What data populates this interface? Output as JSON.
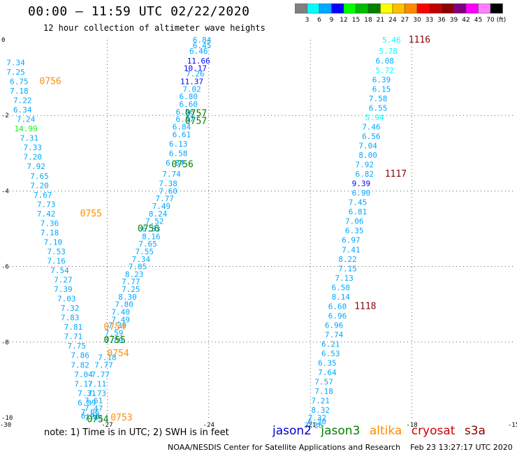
{
  "chart_data": {
    "type": "scatter",
    "title": "00:00 – 11:59 UTC 02/22/2020",
    "subtitle": "12 hour collection of altimeter wave heights",
    "xlim": [
      -30,
      -15
    ],
    "ylim": [
      -10,
      0
    ],
    "x_ticks": [
      -30,
      -27,
      -24,
      -21,
      -18,
      -15
    ],
    "y_ticks": [
      0,
      -2,
      -4,
      -6,
      -8,
      -10
    ],
    "grid": true,
    "colorbar": {
      "unit": "(ft)",
      "ticks": [
        "3",
        "6",
        "9",
        "12",
        "15",
        "18",
        "21",
        "24",
        "27",
        "30",
        "33",
        "36",
        "39",
        "42",
        "45",
        "70"
      ],
      "colors": [
        "#808080",
        "#00ffff",
        "#00a8ff",
        "#0000ff",
        "#00ff00",
        "#00bb00",
        "#008000",
        "#ffff00",
        "#ffbf00",
        "#ff8c00",
        "#ff0000",
        "#c00000",
        "#8b0000",
        "#800080",
        "#ff00ff",
        "#ff80ff",
        "#000000"
      ]
    },
    "tracks": [
      {
        "name": "west-track",
        "values": [
          {
            "x": -29.7,
            "y": -0.6,
            "v": 7.34
          },
          {
            "x": -29.7,
            "y": -0.85,
            "v": 7.25
          },
          {
            "x": -29.6,
            "y": -1.1,
            "v": 6.75
          },
          {
            "x": -29.6,
            "y": -1.35,
            "v": 7.18
          },
          {
            "x": -29.5,
            "y": -1.6,
            "v": 7.22
          },
          {
            "x": -29.5,
            "y": -1.85,
            "v": 6.34
          },
          {
            "x": -29.4,
            "y": -2.1,
            "v": 7.24
          },
          {
            "x": -29.4,
            "y": -2.35,
            "v": 14.99
          },
          {
            "x": -29.3,
            "y": -2.6,
            "v": 7.31
          },
          {
            "x": -29.2,
            "y": -2.85,
            "v": 7.33
          },
          {
            "x": -29.2,
            "y": -3.1,
            "v": 7.2
          },
          {
            "x": -29.1,
            "y": -3.35,
            "v": 7.92
          },
          {
            "x": -29.0,
            "y": -3.6,
            "v": 7.65
          },
          {
            "x": -29.0,
            "y": -3.85,
            "v": 7.2
          },
          {
            "x": -28.9,
            "y": -4.1,
            "v": 7.67
          },
          {
            "x": -28.8,
            "y": -4.35,
            "v": 7.73
          },
          {
            "x": -28.8,
            "y": -4.6,
            "v": 7.42
          },
          {
            "x": -28.7,
            "y": -4.85,
            "v": 7.36
          },
          {
            "x": -28.7,
            "y": -5.1,
            "v": 7.18
          },
          {
            "x": -28.6,
            "y": -5.35,
            "v": 7.1
          },
          {
            "x": -28.5,
            "y": -5.6,
            "v": 7.53
          },
          {
            "x": -28.5,
            "y": -5.85,
            "v": 7.16
          },
          {
            "x": -28.4,
            "y": -6.1,
            "v": 7.54
          },
          {
            "x": -28.3,
            "y": -6.35,
            "v": 7.27
          },
          {
            "x": -28.3,
            "y": -6.6,
            "v": 7.39
          },
          {
            "x": -28.2,
            "y": -6.85,
            "v": 7.03
          },
          {
            "x": -28.1,
            "y": -7.1,
            "v": 7.32
          },
          {
            "x": -28.1,
            "y": -7.35,
            "v": 7.83
          },
          {
            "x": -28.0,
            "y": -7.6,
            "v": 7.81
          },
          {
            "x": -28.0,
            "y": -7.85,
            "v": 7.71
          },
          {
            "x": -27.9,
            "y": -8.1,
            "v": 7.75
          },
          {
            "x": -27.8,
            "y": -8.35,
            "v": 7.86
          },
          {
            "x": -27.8,
            "y": -8.6,
            "v": 7.82
          },
          {
            "x": -27.7,
            "y": -8.85,
            "v": 7.04
          },
          {
            "x": -27.7,
            "y": -9.1,
            "v": 7.17
          },
          {
            "x": -27.6,
            "y": -9.35,
            "v": 7.31
          },
          {
            "x": -27.6,
            "y": -9.6,
            "v": 6.89
          },
          {
            "x": -27.5,
            "y": -9.85,
            "v": 7.06
          },
          {
            "x": -27.4,
            "y": -10.0,
            "v": 7.43
          }
        ]
      },
      {
        "name": "center-track",
        "values": [
          {
            "x": -24.2,
            "y": 0.0,
            "v": 6.84
          },
          {
            "x": -24.2,
            "y": -0.15,
            "v": 6.45
          },
          {
            "x": -24.3,
            "y": -0.3,
            "v": 6.46
          },
          {
            "x": -24.3,
            "y": -0.55,
            "v": 11.66
          },
          {
            "x": -24.4,
            "y": -0.75,
            "v": 10.17
          },
          {
            "x": -24.4,
            "y": -0.9,
            "v": 7.26
          },
          {
            "x": -24.5,
            "y": -1.1,
            "v": 11.37
          },
          {
            "x": -24.5,
            "y": -1.3,
            "v": 7.02
          },
          {
            "x": -24.6,
            "y": -1.5,
            "v": 6.8
          },
          {
            "x": -24.6,
            "y": -1.7,
            "v": 6.6
          },
          {
            "x": -24.7,
            "y": -1.9,
            "v": 6.56
          },
          {
            "x": -24.7,
            "y": -2.1,
            "v": 6.87
          },
          {
            "x": -24.8,
            "y": -2.3,
            "v": 6.84
          },
          {
            "x": -24.8,
            "y": -2.5,
            "v": 6.61
          },
          {
            "x": -24.9,
            "y": -2.75,
            "v": 6.13
          },
          {
            "x": -24.9,
            "y": -3.0,
            "v": 6.58
          },
          {
            "x": -25.0,
            "y": -3.25,
            "v": 6.84
          },
          {
            "x": -25.1,
            "y": -3.55,
            "v": 7.74
          },
          {
            "x": -25.2,
            "y": -3.8,
            "v": 7.38
          },
          {
            "x": -25.2,
            "y": -4.0,
            "v": 7.6
          },
          {
            "x": -25.3,
            "y": -4.2,
            "v": 7.77
          },
          {
            "x": -25.4,
            "y": -4.4,
            "v": 7.49
          },
          {
            "x": -25.5,
            "y": -4.6,
            "v": 8.24
          },
          {
            "x": -25.6,
            "y": -4.8,
            "v": 7.52
          },
          {
            "x": -25.7,
            "y": -5.0,
            "v": 6.53
          },
          {
            "x": -25.7,
            "y": -5.2,
            "v": 8.16
          },
          {
            "x": -25.8,
            "y": -5.4,
            "v": 7.65
          },
          {
            "x": -25.9,
            "y": -5.6,
            "v": 7.55
          },
          {
            "x": -26.0,
            "y": -5.8,
            "v": 7.34
          },
          {
            "x": -26.1,
            "y": -6.0,
            "v": 7.85
          },
          {
            "x": -26.2,
            "y": -6.2,
            "v": 8.23
          },
          {
            "x": -26.3,
            "y": -6.4,
            "v": 7.77
          },
          {
            "x": -26.3,
            "y": -6.6,
            "v": 7.25
          },
          {
            "x": -26.4,
            "y": -6.8,
            "v": 8.3
          },
          {
            "x": -26.5,
            "y": -7.0,
            "v": 7.8
          },
          {
            "x": -26.6,
            "y": -7.2,
            "v": 7.4
          },
          {
            "x": -26.6,
            "y": -7.4,
            "v": 7.49
          },
          {
            "x": -26.7,
            "y": -7.55,
            "v": 7.39
          },
          {
            "x": -26.8,
            "y": -7.75,
            "v": 7.59
          },
          {
            "x": -26.8,
            "y": -7.95,
            "v": 7.89
          },
          {
            "x": -27.0,
            "y": -8.4,
            "v": 7.18
          },
          {
            "x": -27.1,
            "y": -8.6,
            "v": 7.77
          },
          {
            "x": -27.2,
            "y": -8.85,
            "v": 7.77
          },
          {
            "x": -27.3,
            "y": -9.1,
            "v": 7.11
          },
          {
            "x": -27.3,
            "y": -9.35,
            "v": 7.73
          },
          {
            "x": -27.4,
            "y": -9.55,
            "v": 7.61
          },
          {
            "x": -27.4,
            "y": -9.75,
            "v": 7.47
          },
          {
            "x": -27.5,
            "y": -9.95,
            "v": 6.93
          }
        ]
      },
      {
        "name": "east-track",
        "values": [
          {
            "x": -18.6,
            "y": 0.0,
            "v": 5.46
          },
          {
            "x": -18.7,
            "y": -0.3,
            "v": 5.78
          },
          {
            "x": -18.8,
            "y": -0.55,
            "v": 6.08
          },
          {
            "x": -18.8,
            "y": -0.8,
            "v": 5.72
          },
          {
            "x": -18.9,
            "y": -1.05,
            "v": 6.39
          },
          {
            "x": -18.9,
            "y": -1.3,
            "v": 6.15
          },
          {
            "x": -19.0,
            "y": -1.55,
            "v": 7.58
          },
          {
            "x": -19.0,
            "y": -1.8,
            "v": 6.55
          },
          {
            "x": -19.1,
            "y": -2.05,
            "v": 5.94
          },
          {
            "x": -19.2,
            "y": -2.3,
            "v": 7.46
          },
          {
            "x": -19.2,
            "y": -2.55,
            "v": 6.56
          },
          {
            "x": -19.3,
            "y": -2.8,
            "v": 7.04
          },
          {
            "x": -19.3,
            "y": -3.05,
            "v": 8.0
          },
          {
            "x": -19.4,
            "y": -3.3,
            "v": 7.92
          },
          {
            "x": -19.4,
            "y": -3.55,
            "v": 6.82
          },
          {
            "x": -19.5,
            "y": -3.8,
            "v": 9.39
          },
          {
            "x": -19.5,
            "y": -4.05,
            "v": 6.9
          },
          {
            "x": -19.6,
            "y": -4.3,
            "v": 7.45
          },
          {
            "x": -19.6,
            "y": -4.55,
            "v": 6.81
          },
          {
            "x": -19.7,
            "y": -4.8,
            "v": 7.06
          },
          {
            "x": -19.7,
            "y": -5.05,
            "v": 6.35
          },
          {
            "x": -19.8,
            "y": -5.3,
            "v": 6.97
          },
          {
            "x": -19.8,
            "y": -5.55,
            "v": 7.41
          },
          {
            "x": -19.9,
            "y": -5.8,
            "v": 8.22
          },
          {
            "x": -19.9,
            "y": -6.05,
            "v": 7.15
          },
          {
            "x": -20.0,
            "y": -6.3,
            "v": 7.13
          },
          {
            "x": -20.1,
            "y": -6.55,
            "v": 6.5
          },
          {
            "x": -20.1,
            "y": -6.8,
            "v": 8.14
          },
          {
            "x": -20.2,
            "y": -7.05,
            "v": 6.6
          },
          {
            "x": -20.2,
            "y": -7.3,
            "v": 6.96
          },
          {
            "x": -20.3,
            "y": -7.55,
            "v": 6.96
          },
          {
            "x": -20.3,
            "y": -7.8,
            "v": 7.74
          },
          {
            "x": -20.4,
            "y": -8.05,
            "v": 6.21
          },
          {
            "x": -20.4,
            "y": -8.3,
            "v": 6.53
          },
          {
            "x": -20.5,
            "y": -8.55,
            "v": 6.35
          },
          {
            "x": -20.5,
            "y": -8.8,
            "v": 7.64
          },
          {
            "x": -20.6,
            "y": -9.05,
            "v": 7.57
          },
          {
            "x": -20.6,
            "y": -9.3,
            "v": 7.18
          },
          {
            "x": -20.7,
            "y": -9.55,
            "v": 7.21
          },
          {
            "x": -20.7,
            "y": -9.8,
            "v": 8.32
          },
          {
            "x": -20.8,
            "y": -10.0,
            "v": 7.32
          },
          {
            "x": -20.8,
            "y": -10.1,
            "v": 6.2
          },
          {
            "x": -20.9,
            "y": -10.2,
            "v": 7.36
          }
        ]
      }
    ],
    "time_labels": [
      {
        "text": "0756",
        "x": -29.0,
        "y": -1.1,
        "color": "#ff8c00"
      },
      {
        "text": "0755",
        "x": -27.8,
        "y": -4.6,
        "color": "#ff8c00"
      },
      {
        "text": "0754",
        "x": -27.1,
        "y": -7.6,
        "color": "#ff8c00"
      },
      {
        "text": "0754",
        "x": -27.0,
        "y": -8.3,
        "color": "#ff8c00"
      },
      {
        "text": "0753",
        "x": -26.9,
        "y": -10.0,
        "color": "#ff8c00"
      },
      {
        "text": "0757",
        "x": -24.7,
        "y": -1.95,
        "color": "#008000"
      },
      {
        "text": "0757",
        "x": -24.7,
        "y": -2.15,
        "color": "#008000"
      },
      {
        "text": "0756",
        "x": -25.1,
        "y": -3.3,
        "color": "#008000"
      },
      {
        "text": "0756",
        "x": -26.1,
        "y": -5.0,
        "color": "#008000"
      },
      {
        "text": "0755",
        "x": -27.1,
        "y": -7.95,
        "color": "#008000"
      },
      {
        "text": "0754",
        "x": -27.6,
        "y": -10.05,
        "color": "#008000"
      },
      {
        "text": "1116",
        "x": -18.1,
        "y": 0.0,
        "color": "#8b0000"
      },
      {
        "text": "1117",
        "x": -18.8,
        "y": -3.55,
        "color": "#8b0000"
      },
      {
        "text": "1118",
        "x": -19.7,
        "y": -7.05,
        "color": "#8b0000"
      }
    ]
  },
  "note": "note: 1) Time is in UTC; 2) SWH is in feet",
  "legend": [
    {
      "label": "jason2",
      "color": "#0000cc"
    },
    {
      "label": "jason3",
      "color": "#008000"
    },
    {
      "label": "altika",
      "color": "#ff8c00"
    },
    {
      "label": "cryosat",
      "color": "#cc0000"
    },
    {
      "label": "s3a",
      "color": "#8b0000"
    }
  ],
  "footer": {
    "org": "NOAA/NESDIS Center for Satellite Applications and Research",
    "timestamp": "Feb 23 13:27:17 UTC 2020"
  }
}
